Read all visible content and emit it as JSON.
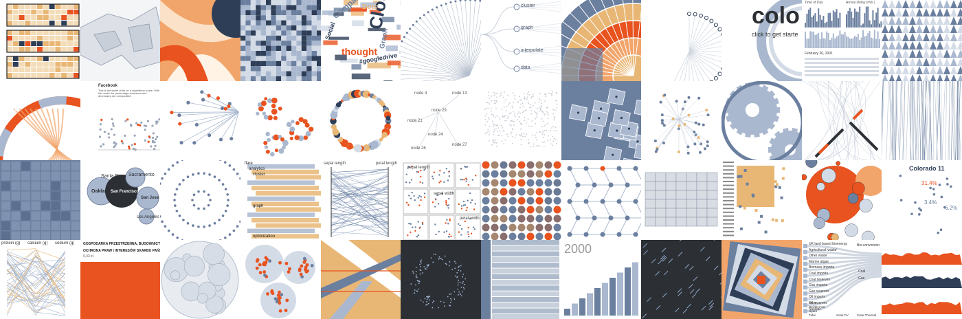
{
  "gallery": {
    "colors": {
      "orange": "#e8531f",
      "orange_light": "#f2a56b",
      "tan": "#e8b776",
      "navy": "#2f3e57",
      "steel": "#6b7f9f",
      "blue_light": "#a9b8cf",
      "blue_pale": "#d3dbe7",
      "dark": "#2c3035",
      "grey_bg": "#eef0f3"
    },
    "tiles": [
      {
        "name": "calendar-heatmap",
        "kind": "calendar",
        "texts": []
      },
      {
        "name": "grey-map",
        "kind": "map",
        "texts": []
      },
      {
        "name": "chord-diagram-orange",
        "kind": "chord",
        "texts": []
      },
      {
        "name": "choropleth-map",
        "kind": "choropleth",
        "texts": []
      },
      {
        "name": "word-cloud",
        "kind": "wordcloud",
        "texts": [
          "Cloud",
          "Compared",
          "thought",
          "Social",
          "Dots",
          "#googledrive",
          "Graph"
        ]
      },
      {
        "name": "radial-tree",
        "kind": "radialtree",
        "texts": []
      },
      {
        "name": "tree-diagram",
        "kind": "tree",
        "texts": [
          "cluster",
          "graph",
          "interpolate",
          "data"
        ]
      },
      {
        "name": "sunburst",
        "kind": "sunburst",
        "texts": []
      },
      {
        "name": "radial-cluster",
        "kind": "radialcluster",
        "texts": []
      },
      {
        "name": "color-wheel-intro",
        "kind": "colo",
        "texts": [
          "colo",
          "click to get starte"
        ]
      },
      {
        "name": "crossfilter",
        "kind": "crossfilter",
        "texts": [
          "Time of Day",
          "Arrival Delay (min.)",
          "February 26, 2001"
        ]
      },
      {
        "name": "triangle-pattern",
        "kind": "triangles",
        "texts": []
      },
      {
        "name": "chord-diagram-countries",
        "kind": "chord2",
        "texts": [
          "Spain",
          "Germany"
        ]
      },
      {
        "name": "log-scatter",
        "kind": "logscatter",
        "texts": [
          "Facebook",
          "This is the same chart on a logarithmic scale. With this scale the percentage increases and decreases are comparable."
        ]
      },
      {
        "name": "force-graph",
        "kind": "force",
        "texts": []
      },
      {
        "name": "bubble-clusters",
        "kind": "bubbleclusters",
        "texts": []
      },
      {
        "name": "circle-ring",
        "kind": "ring",
        "texts": []
      },
      {
        "name": "node-graph",
        "kind": "nodegraph",
        "texts": [
          "node 4",
          "node 13",
          "node 29",
          "node 21",
          "node 24",
          "node 26",
          "node 27"
        ]
      },
      {
        "name": "dot-map",
        "kind": "dotmap",
        "texts": []
      },
      {
        "name": "voronoi",
        "kind": "voronoi",
        "texts": []
      },
      {
        "name": "network",
        "kind": "network",
        "texts": []
      },
      {
        "name": "gears",
        "kind": "gears",
        "texts": []
      },
      {
        "name": "pen-drawing",
        "kind": "pens",
        "texts": []
      },
      {
        "name": "vertical-lines",
        "kind": "vlines",
        "texts": []
      },
      {
        "name": "grid-matrix",
        "kind": "gridmatrix",
        "texts": []
      },
      {
        "name": "bubble-map",
        "kind": "bubblemap",
        "texts": [
          "Santa Rosa",
          "Sacramento",
          "Oakland",
          "San Francisco",
          "San Jose",
          "Los Angeles"
        ]
      },
      {
        "name": "concentric-dots",
        "kind": "concentric",
        "texts": []
      },
      {
        "name": "indented-tree",
        "kind": "indented",
        "texts": [
          "flare",
          "analytics",
          "cluster",
          "graph",
          "optimization"
        ]
      },
      {
        "name": "parallel-coordinates",
        "kind": "parallel",
        "texts": [
          "sepal length",
          "petal length"
        ]
      },
      {
        "name": "scatter-matrix",
        "kind": "scattermatrix",
        "texts": [
          "sepal length",
          "sepal width",
          "petal width"
        ]
      },
      {
        "name": "circle-grid",
        "kind": "circlegrid",
        "texts": []
      },
      {
        "name": "hex-network",
        "kind": "hexnet",
        "texts": []
      },
      {
        "name": "us-states-map",
        "kind": "usmap",
        "texts": []
      },
      {
        "name": "adjacency-matrix",
        "kind": "matrix",
        "texts": []
      },
      {
        "name": "bubble-chart-orange",
        "kind": "bubbles",
        "texts": []
      },
      {
        "name": "pie-labels",
        "kind": "pielabels",
        "texts": [
          "Colorado 11",
          "31.4%",
          "3.4%",
          "6.2%"
        ]
      },
      {
        "name": "parallel-axes",
        "kind": "parallel2",
        "texts": [
          "protein (g)",
          "calcium (g)",
          "sodium (g)"
        ]
      },
      {
        "name": "polish-budget",
        "kind": "budget",
        "texts": [
          "GOSPODARKA PRZESTRZENNA, BUDOWNICTWO",
          "OCHRONA PRAW I INTERESÓW SKARBU PAŃSTWA",
          "0,43 zł"
        ]
      },
      {
        "name": "circle-packing",
        "kind": "packing",
        "texts": []
      },
      {
        "name": "packed-orange",
        "kind": "packedorange",
        "texts": []
      },
      {
        "name": "sankey-bands",
        "kind": "bands",
        "texts": []
      },
      {
        "name": "dark-particles",
        "kind": "darkparticles",
        "texts": []
      },
      {
        "name": "icicle",
        "kind": "icicle",
        "texts": []
      },
      {
        "name": "population-bars",
        "kind": "popbars",
        "texts": [
          "2000"
        ]
      },
      {
        "name": "dark-arrows",
        "kind": "darkarrows",
        "texts": []
      },
      {
        "name": "nested-squares",
        "kind": "nested",
        "texts": []
      },
      {
        "name": "energy-sankey",
        "kind": "sankey",
        "texts": [
          "UK land based bioenergy",
          "Agricultural 'waste'",
          "Other waste",
          "Marine algae",
          "Biomass imports",
          "Coal imports",
          "Coal reserves",
          "Gas imports",
          "Gas reserves",
          "Oil imports",
          "Oil reserves",
          "Nuclear",
          "Bio-conversion",
          "Coal",
          "Gas",
          "Wave",
          "Geothermal",
          "Hydro",
          "Tidal",
          "Solar PV",
          "Solar Thermal"
        ]
      },
      {
        "name": "stacked-waves",
        "kind": "waves",
        "texts": []
      }
    ]
  }
}
